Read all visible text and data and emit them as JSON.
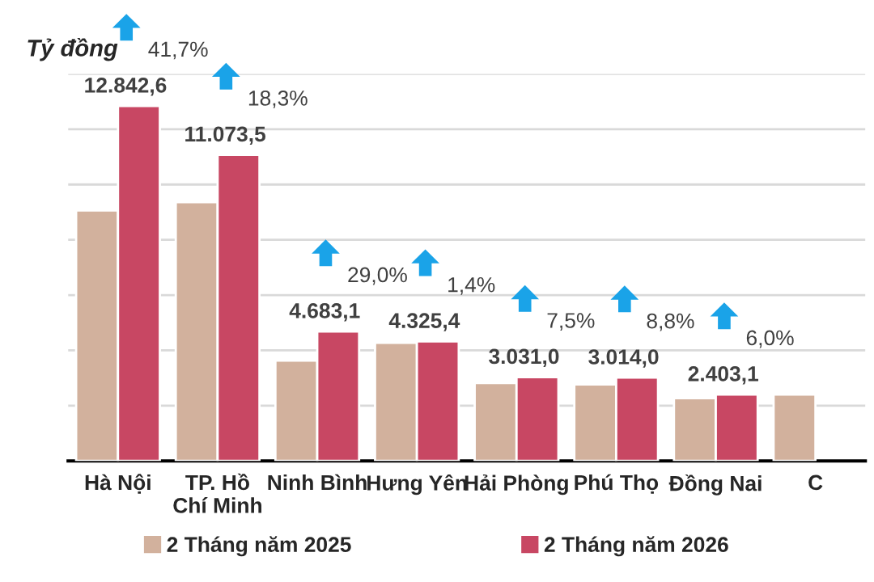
{
  "chart_data": {
    "type": "bar",
    "ylabel": "Tỷ đồng",
    "categories": [
      "Hà Nội",
      "TP. Hồ\nChí Minh",
      "Ninh Bình",
      "Hưng Yên",
      "Hải Phòng",
      "Phú Thọ",
      "Đồng Nai",
      "C"
    ],
    "series": [
      {
        "name": "2 Tháng năm 2025",
        "color": "#d2b19d",
        "values": [
          9060,
          9360,
          3630,
          4270,
          2820,
          2770,
          2270,
          2400
        ]
      },
      {
        "name": "2 Tháng năm 2026",
        "color": "#c84763",
        "values": [
          12842.6,
          11073.5,
          4683.1,
          4325.4,
          3031.0,
          3014.0,
          2403.1,
          null
        ],
        "value_labels": [
          "12.842,6",
          "11.073,5",
          "4.683,1",
          "4.325,4",
          "3.031,0",
          "3.014,0",
          "2.403,1",
          null
        ]
      }
    ],
    "annotations": [
      "41,7%",
      "18,3%",
      "29,0%",
      "1,4%",
      "7,5%",
      "8,8%",
      "6,0%"
    ],
    "ylim": [
      0,
      14000
    ],
    "yticks": [
      {
        "value": 0,
        "label": null
      },
      {
        "value": 2000,
        "label": null
      },
      {
        "value": 4000,
        "label": null
      },
      {
        "value": 6000,
        "label": null
      },
      {
        "value": 8000,
        "label": null
      },
      {
        "value": 10000,
        "label": null
      },
      {
        "value": 12000,
        "label": null
      },
      {
        "value": 14000,
        "label": null
      }
    ],
    "tick_labels": "x",
    "grid": "y",
    "legend": "bottom"
  }
}
